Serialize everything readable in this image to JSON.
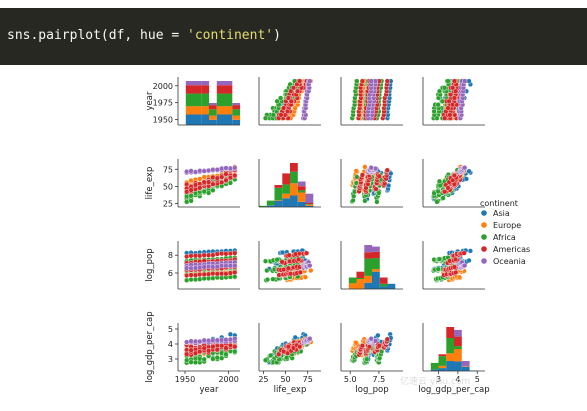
{
  "code": {
    "prefix": "sns.pairplot(df, hue = ",
    "string": "'continent'",
    "suffix": ")"
  },
  "watermark": "亿速云 yisu.com",
  "chart_data": {
    "type": "scatter",
    "variables": [
      "year",
      "life_exp",
      "log_pop",
      "log_gdp_per_cap"
    ],
    "xlabels": [
      "year",
      "life_exp",
      "log_pop",
      "log_gdp_per_cap"
    ],
    "ylabels": [
      "year",
      "life_exp",
      "log_pop",
      "log_gdp_per_cap"
    ],
    "ranges": {
      "year": [
        1942,
        2013
      ],
      "life_exp": [
        20,
        90
      ],
      "log_pop": [
        4.2,
        9.6
      ],
      "log_gdp_per_cap": [
        2.2,
        5.4
      ]
    },
    "ticks": {
      "year": {
        "values": [
          1950,
          1975,
          2000
        ],
        "labels": [
          "1950",
          "1975",
          "2000"
        ]
      },
      "life_exp": {
        "values": [
          25,
          50,
          75
        ],
        "labels": [
          "25",
          "50",
          "75"
        ]
      },
      "log_pop": {
        "values": [
          6,
          8
        ],
        "labels": [
          "6",
          "8"
        ]
      },
      "log_gdp_per_cap": {
        "values": [
          3,
          4,
          5
        ],
        "labels": [
          "3",
          "4",
          "5"
        ]
      }
    },
    "xticks": {
      "year": {
        "values": [
          1950,
          2000
        ],
        "labels": [
          "1950",
          "2000"
        ]
      },
      "life_exp": {
        "values": [
          25,
          50,
          75
        ],
        "labels": [
          "25",
          "50",
          "75"
        ]
      },
      "log_pop": {
        "values": [
          5.0,
          7.5
        ],
        "labels": [
          "5.0",
          "7.5"
        ]
      },
      "log_gdp_per_cap": {
        "values": [
          3,
          4,
          5
        ],
        "labels": [
          "3",
          "4",
          "5"
        ]
      }
    },
    "legend_placement": "right",
    "series": [
      {
        "name": "Asia",
        "color": "#1f77b4",
        "year_bounds": [
          1952,
          2007
        ],
        "life_exp": [
          28,
          83
        ],
        "log_pop": [
          5.0,
          9.1
        ],
        "log_gdp_per_cap": [
          2.6,
          5.1
        ]
      },
      {
        "name": "Europe",
        "color": "#ff7f0e",
        "year_bounds": [
          1952,
          2007
        ],
        "life_exp": [
          43,
          82
        ],
        "log_pop": [
          5.1,
          7.9
        ],
        "log_gdp_per_cap": [
          3.0,
          4.7
        ]
      },
      {
        "name": "Africa",
        "color": "#2ca02c",
        "year_bounds": [
          1952,
          2007
        ],
        "life_exp": [
          23,
          76
        ],
        "log_pop": [
          4.8,
          8.2
        ],
        "log_gdp_per_cap": [
          2.4,
          4.3
        ]
      },
      {
        "name": "Americas",
        "color": "#d62728",
        "year_bounds": [
          1952,
          2007
        ],
        "life_exp": [
          37,
          80
        ],
        "log_pop": [
          4.8,
          8.5
        ],
        "log_gdp_per_cap": [
          3.1,
          4.6
        ]
      },
      {
        "name": "Oceania",
        "color": "#9467bd",
        "year_bounds": [
          1952,
          2007
        ],
        "life_exp": [
          68,
          81
        ],
        "log_pop": [
          6.0,
          7.3
        ],
        "log_gdp_per_cap": [
          4.0,
          4.5
        ]
      }
    ],
    "legend": {
      "title": "continent",
      "entries": [
        "Asia",
        "Europe",
        "Africa",
        "Americas",
        "Oceania"
      ]
    }
  }
}
